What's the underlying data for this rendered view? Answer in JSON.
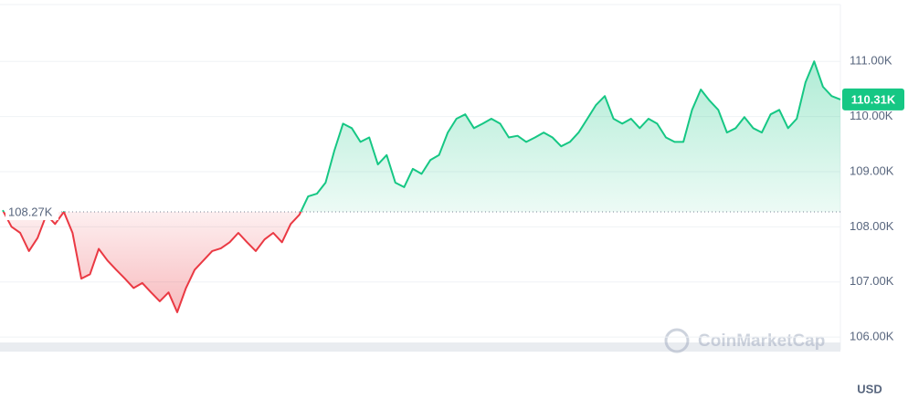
{
  "chart_data": {
    "type": "line",
    "up_color": "#16c784",
    "down_color": "#ea3943",
    "baseline": {
      "value": 108.27,
      "label": "108.27K"
    },
    "last_price": {
      "value": 110.31,
      "label": "110.31K"
    },
    "y_unit_label": "USD",
    "watermark": "CoinMarketCap",
    "ylim": [
      105.77,
      112.03
    ],
    "yticks": [
      {
        "value": 106,
        "label": "106.00K"
      },
      {
        "value": 107,
        "label": "107.00K"
      },
      {
        "value": 108,
        "label": "108.00K"
      },
      {
        "value": 109,
        "label": "109.00K"
      },
      {
        "value": 110,
        "label": "110.00K"
      },
      {
        "value": 111,
        "label": "111.00K"
      }
    ],
    "grid": true,
    "values": [
      108.3,
      108.0,
      107.89,
      107.56,
      107.8,
      108.22,
      108.05,
      108.27,
      107.89,
      107.06,
      107.14,
      107.6,
      107.39,
      107.22,
      107.06,
      106.89,
      106.98,
      106.81,
      106.65,
      106.81,
      106.45,
      106.89,
      107.22,
      107.39,
      107.56,
      107.61,
      107.72,
      107.89,
      107.72,
      107.56,
      107.77,
      107.89,
      107.72,
      108.05,
      108.22,
      108.55,
      108.6,
      108.8,
      109.38,
      109.87,
      109.79,
      109.54,
      109.62,
      109.13,
      109.3,
      108.8,
      108.72,
      109.05,
      108.96,
      109.21,
      109.3,
      109.71,
      109.96,
      110.04,
      109.79,
      109.87,
      109.96,
      109.87,
      109.62,
      109.65,
      109.54,
      109.62,
      109.71,
      109.62,
      109.46,
      109.54,
      109.71,
      109.96,
      110.21,
      110.37,
      109.96,
      109.87,
      109.96,
      109.79,
      109.96,
      109.87,
      109.62,
      109.54,
      109.54,
      110.12,
      110.49,
      110.29,
      110.12,
      109.71,
      109.79,
      109.99,
      109.79,
      109.71,
      110.04,
      110.12,
      109.79,
      109.96,
      110.62,
      111.0,
      110.54,
      110.37,
      110.31
    ]
  }
}
